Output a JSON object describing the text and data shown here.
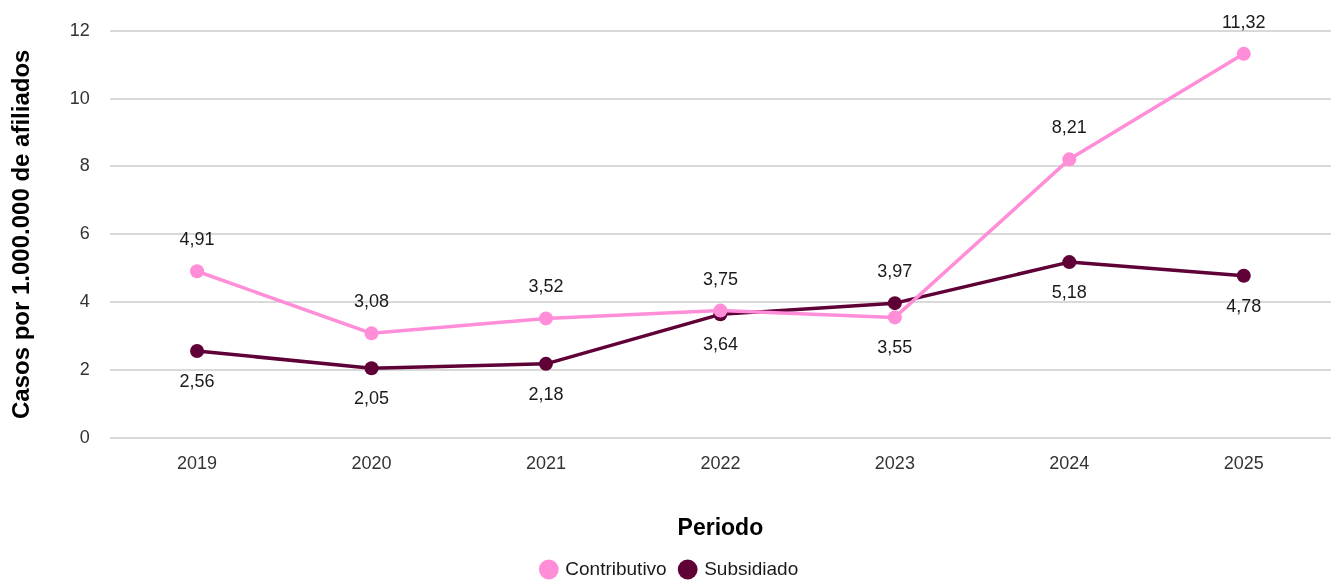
{
  "chart_data": {
    "type": "line",
    "xlabel": "Periodo",
    "ylabel": "Casos por 1.000.000 de afiliados",
    "categories": [
      "2019",
      "2020",
      "2021",
      "2022",
      "2023",
      "2024",
      "2025"
    ],
    "series": [
      {
        "name": "Contributivo",
        "color": "#ff8dd8",
        "values": [
          4.91,
          3.08,
          3.52,
          3.75,
          3.55,
          8.21,
          11.32
        ],
        "value_labels": [
          "4,91",
          "3,08",
          "3,52",
          "3,75",
          "3,55",
          "8,21",
          "11,32"
        ]
      },
      {
        "name": "Subsidiado",
        "color": "#5f0037",
        "values": [
          2.56,
          2.05,
          2.18,
          3.64,
          3.97,
          5.18,
          4.78
        ],
        "value_labels": [
          "2,56",
          "2,05",
          "2,18",
          "3,64",
          "3,97",
          "5,18",
          "4,78"
        ]
      }
    ],
    "ylim": [
      0,
      12
    ],
    "yticks": [
      0,
      2,
      4,
      6,
      8,
      10,
      12
    ],
    "grid": "y",
    "legend": "bottom",
    "marker": "circle",
    "line_style": "solid"
  }
}
